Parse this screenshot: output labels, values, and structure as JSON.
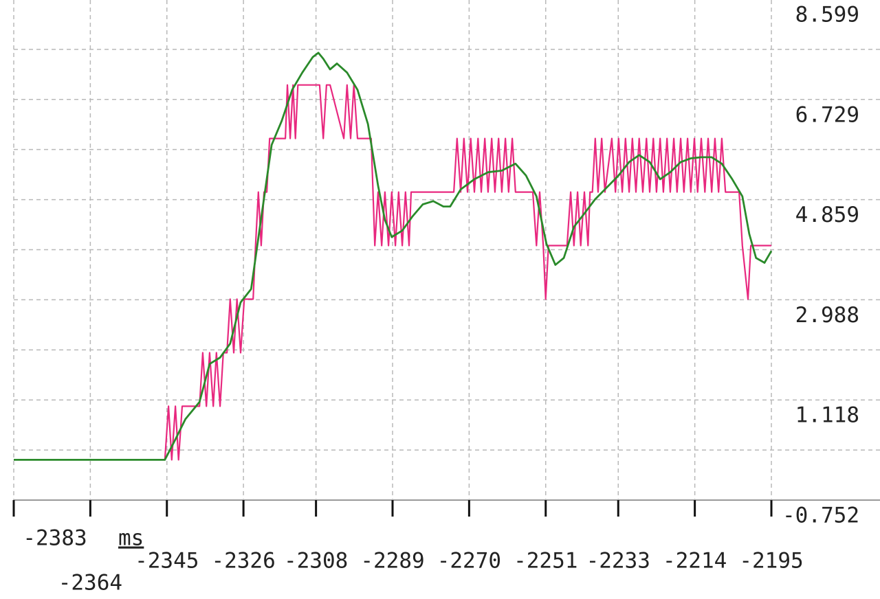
{
  "chart_data": {
    "type": "line",
    "x_label": "ms",
    "xlim": [
      -2383,
      -2195
    ],
    "xticks": [
      -2383,
      -2364,
      -2345,
      -2326,
      -2308,
      -2289,
      -2270,
      -2251,
      -2233,
      -2214,
      -2195
    ],
    "ylim": [
      -0.752,
      8.599
    ],
    "yticks": [
      -0.752,
      1.118,
      2.988,
      4.859,
      6.729,
      8.599
    ],
    "grid": true,
    "series": [
      {
        "color": "#e8287f",
        "x": [
          -2383.0,
          -2345.5,
          -2344.6,
          -2343.8,
          -2342.9,
          -2342.1,
          -2341.2,
          -2336.9,
          -2336.1,
          -2335.2,
          -2334.4,
          -2333.5,
          -2332.7,
          -2331.8,
          -2331.0,
          -2330.1,
          -2329.3,
          -2328.4,
          -2327.6,
          -2326.7,
          -2325.8,
          -2323.6,
          -2323.0,
          -2322.3,
          -2321.6,
          -2320.9,
          -2320.2,
          -2319.5,
          -2315.6,
          -2315.1,
          -2314.4,
          -2313.7,
          -2313.1,
          -2312.5,
          -2307.1,
          -2306.2,
          -2305.4,
          -2304.5,
          -2301.1,
          -2300.3,
          -2299.4,
          -2298.6,
          -2297.7,
          -2294.3,
          -2293.4,
          -2292.6,
          -2291.7,
          -2290.9,
          -2290.0,
          -2289.2,
          -2288.3,
          -2287.5,
          -2286.6,
          -2285.8,
          -2284.9,
          -2284.4,
          -2273.8,
          -2273.0,
          -2272.1,
          -2271.3,
          -2270.4,
          -2269.6,
          -2268.7,
          -2267.8,
          -2267.0,
          -2266.1,
          -2265.3,
          -2264.4,
          -2263.6,
          -2262.7,
          -2261.9,
          -2261.0,
          -2260.2,
          -2259.3,
          -2258.5,
          -2254.2,
          -2253.3,
          -2252.5,
          -2251.6,
          -2251.0,
          -2250.3,
          -2245.7,
          -2244.8,
          -2244.0,
          -2243.1,
          -2242.3,
          -2241.4,
          -2240.5,
          -2240.0,
          -2239.4,
          -2238.7,
          -2238.0,
          -2237.1,
          -2236.3,
          -2234.6,
          -2233.7,
          -2232.9,
          -2232.0,
          -2231.2,
          -2230.3,
          -2229.5,
          -2228.6,
          -2227.8,
          -2226.9,
          -2226.0,
          -2225.2,
          -2224.3,
          -2223.5,
          -2222.6,
          -2221.8,
          -2220.9,
          -2220.1,
          -2219.2,
          -2218.4,
          -2217.5,
          -2216.7,
          -2215.8,
          -2215.0,
          -2214.1,
          -2213.3,
          -2212.4,
          -2211.5,
          -2210.7,
          -2209.8,
          -2209.0,
          -2208.1,
          -2207.3,
          -2206.4,
          -2203.0,
          -2202.2,
          -2200.8,
          -2200.1,
          -2195.0
        ],
        "values": [
          0,
          0,
          1,
          0,
          1,
          0,
          1,
          1,
          2,
          1,
          2,
          1,
          2,
          1,
          2,
          2,
          3,
          2,
          3,
          2,
          3,
          3,
          4,
          5,
          4,
          5,
          5,
          6,
          6,
          7,
          6,
          7,
          6,
          7,
          7,
          6,
          7,
          7,
          6,
          7,
          6,
          7,
          6,
          6,
          4,
          5,
          4,
          5,
          4,
          5,
          4,
          5,
          4,
          5,
          4,
          5,
          5,
          6,
          5,
          6,
          5,
          6,
          5,
          6,
          5,
          6,
          5,
          6,
          5,
          6,
          5,
          6,
          5,
          6,
          5,
          5,
          4,
          5,
          4,
          3,
          4,
          4,
          5,
          4,
          5,
          4,
          5,
          4,
          5,
          5,
          6,
          5,
          6,
          5,
          6,
          5,
          6,
          5,
          6,
          5,
          6,
          5,
          6,
          5,
          6,
          5,
          6,
          5,
          6,
          5,
          6,
          5,
          6,
          5,
          6,
          5,
          6,
          5,
          6,
          5,
          6,
          5,
          6,
          5,
          6,
          5,
          6,
          5,
          5,
          4,
          3,
          4,
          4
        ]
      },
      {
        "color": "#2a8a2a",
        "x": [
          -2383.0,
          -2345.5,
          -2342.9,
          -2340.4,
          -2336.9,
          -2334.4,
          -2331.8,
          -2329.3,
          -2326.7,
          -2324.1,
          -2322.4,
          -2320.7,
          -2319.0,
          -2316.5,
          -2313.9,
          -2311.4,
          -2308.8,
          -2307.4,
          -2306.2,
          -2304.5,
          -2302.8,
          -2300.3,
          -2297.7,
          -2295.1,
          -2292.6,
          -2290.9,
          -2289.2,
          -2286.6,
          -2284.1,
          -2281.5,
          -2278.9,
          -2276.4,
          -2274.7,
          -2272.1,
          -2268.7,
          -2265.3,
          -2261.9,
          -2258.5,
          -2255.9,
          -2253.3,
          -2250.8,
          -2248.6,
          -2246.5,
          -2244.0,
          -2241.4,
          -2238.8,
          -2236.3,
          -2232.9,
          -2230.3,
          -2227.8,
          -2225.2,
          -2222.6,
          -2220.1,
          -2217.5,
          -2215.0,
          -2212.4,
          -2209.8,
          -2207.3,
          -2204.7,
          -2202.2,
          -2200.5,
          -2198.8,
          -2196.7,
          -2195.0
        ],
        "values": [
          0,
          0,
          0.38,
          0.76,
          1.08,
          1.79,
          1.91,
          2.17,
          2.94,
          3.19,
          4.09,
          4.99,
          5.88,
          6.33,
          6.91,
          7.23,
          7.52,
          7.6,
          7.49,
          7.29,
          7.4,
          7.23,
          6.91,
          6.27,
          5.12,
          4.48,
          4.16,
          4.28,
          4.54,
          4.77,
          4.83,
          4.73,
          4.73,
          5.05,
          5.24,
          5.37,
          5.4,
          5.53,
          5.31,
          4.92,
          4.03,
          3.64,
          3.77,
          4.35,
          4.6,
          4.86,
          5.05,
          5.31,
          5.56,
          5.69,
          5.56,
          5.24,
          5.37,
          5.56,
          5.63,
          5.65,
          5.65,
          5.53,
          5.24,
          4.92,
          4.22,
          3.77,
          3.68,
          3.9
        ]
      }
    ]
  }
}
